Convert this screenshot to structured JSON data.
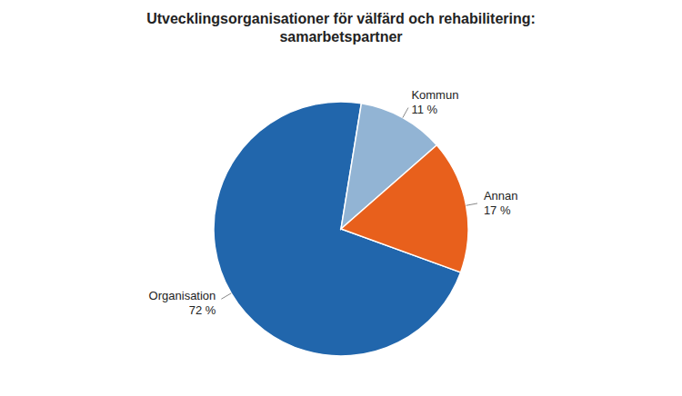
{
  "chart_data": {
    "type": "pie",
    "title": "Utvecklingsorganisationer för välfärd och rehabilitering:\nsamarbetspartner",
    "categories": [
      "Organisation",
      "Kommun",
      "Annan"
    ],
    "values": [
      72,
      11,
      17
    ],
    "value_labels": [
      "72 %",
      "11 %",
      "17 %"
    ],
    "colors": [
      "#2166ac",
      "#92b4d4",
      "#e8601c"
    ],
    "data_labels": true
  }
}
